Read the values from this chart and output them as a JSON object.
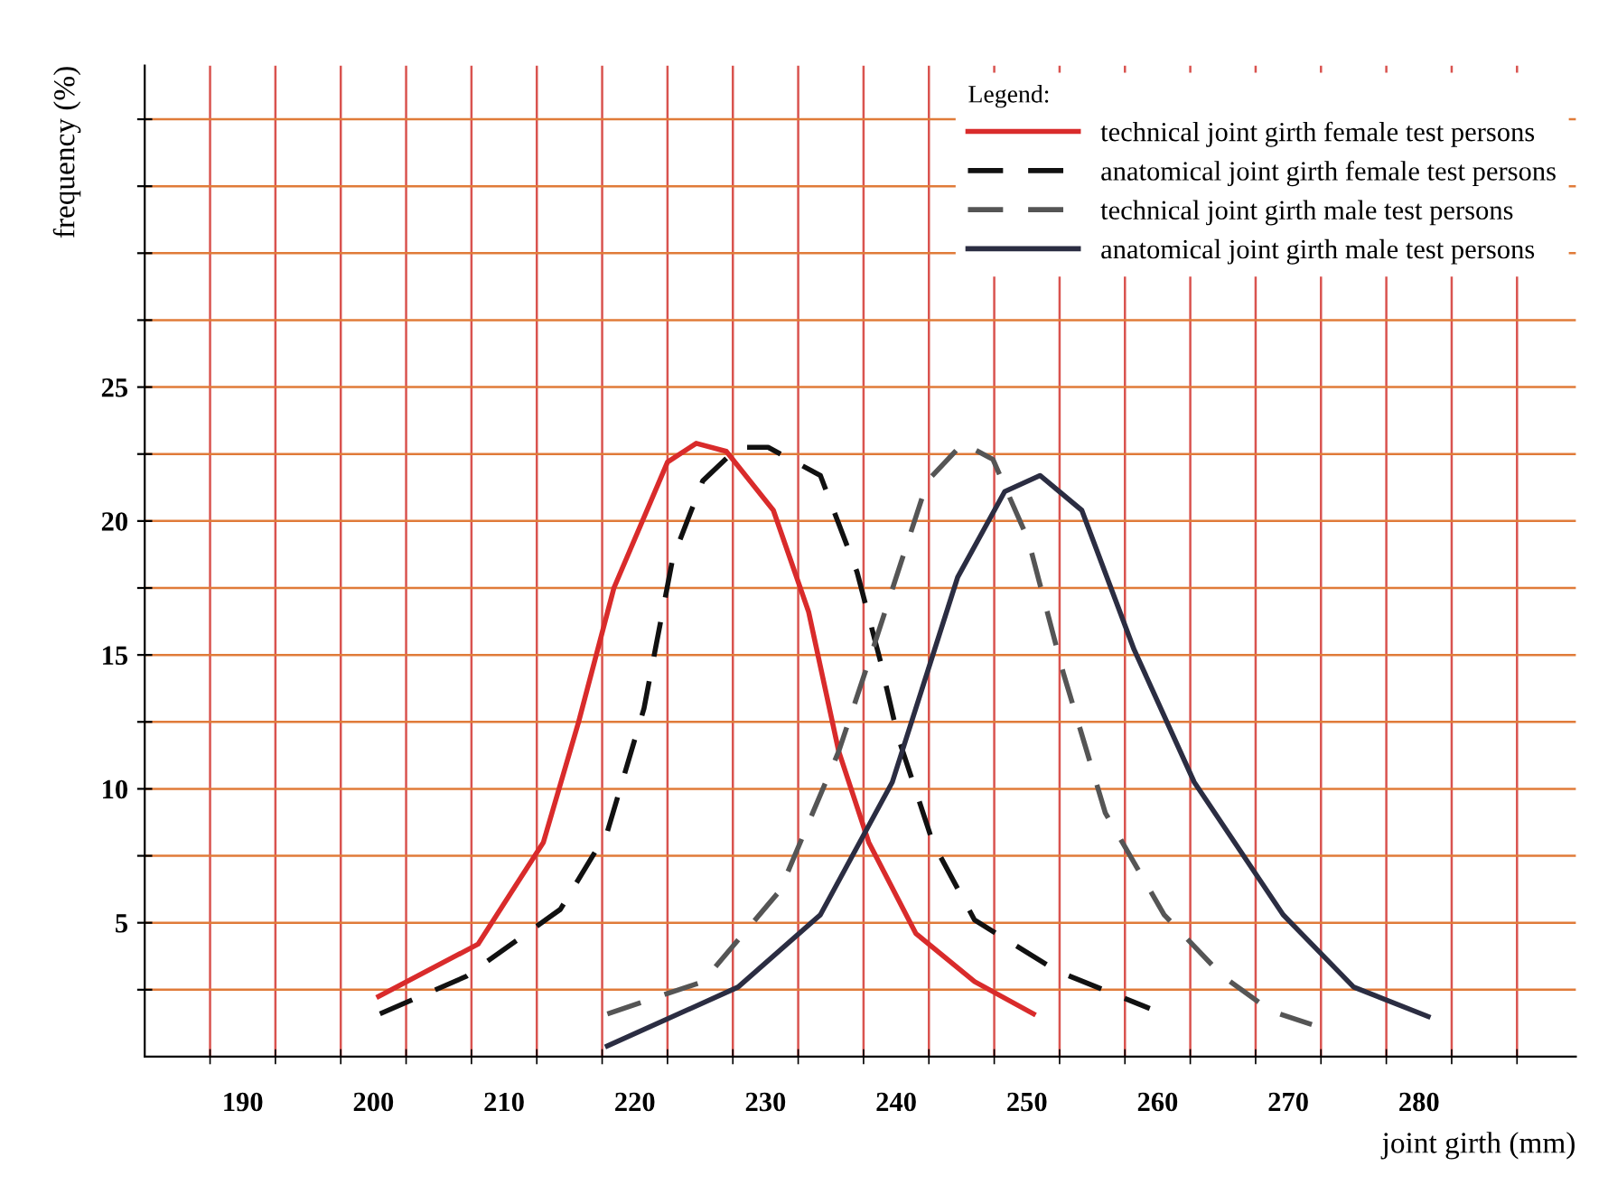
{
  "chart_data": {
    "type": "line",
    "xlabel": "joint girth (mm)",
    "ylabel": "frequency (%)",
    "legend_title": "Legend:",
    "xlim": [
      182.5,
      292
    ],
    "ylim": [
      0,
      37
    ],
    "xticks": [
      {
        "value": 187.5,
        "label": null
      },
      190,
      {
        "value": 192.5,
        "label": null
      },
      {
        "value": 197.5,
        "label": null
      },
      200,
      {
        "value": 202.5,
        "label": null
      },
      {
        "value": 207.5,
        "label": null
      },
      210,
      {
        "value": 212.5,
        "label": null
      },
      {
        "value": 217.5,
        "label": null
      },
      220,
      {
        "value": 222.5,
        "label": null
      },
      {
        "value": 227.5,
        "label": null
      },
      230,
      {
        "value": 232.5,
        "label": null
      },
      {
        "value": 237.5,
        "label": null
      },
      240,
      {
        "value": 242.5,
        "label": null
      },
      {
        "value": 247.5,
        "label": null
      },
      250,
      {
        "value": 252.5,
        "label": null
      },
      {
        "value": 257.5,
        "label": null
      },
      260,
      {
        "value": 262.5,
        "label": null
      },
      {
        "value": 267.5,
        "label": null
      },
      270,
      {
        "value": 272.5,
        "label": null
      },
      {
        "value": 277.5,
        "label": null
      },
      280,
      {
        "value": 282.5,
        "label": null
      },
      {
        "value": 287.5,
        "label": null
      }
    ],
    "yticks": [
      {
        "value": 2.5,
        "label": null
      },
      5,
      {
        "value": 7.5,
        "label": null
      },
      10,
      {
        "value": 12.5,
        "label": null
      },
      15,
      {
        "value": 17.5,
        "label": null
      },
      20,
      {
        "value": 22.5,
        "label": null
      },
      25,
      {
        "value": 27.5,
        "label": null
      },
      {
        "value": 30,
        "label": null
      },
      {
        "value": 32.5,
        "label": null
      },
      {
        "value": 35,
        "label": null
      }
    ],
    "grid": true,
    "legend": "top right",
    "marker": "none",
    "series": [
      {
        "name": "technical joint girth female test persons",
        "color": "#d92b2b",
        "line_style": "solid",
        "x": [
          200.4,
          208,
          213,
          215.7,
          218.4,
          222.5,
          224.7,
          227,
          230.6,
          233.3,
          235.6,
          237.9,
          241.5,
          246,
          250.5
        ],
        "values": [
          2.25,
          4.2,
          8.0,
          12.5,
          17.5,
          22.2,
          22.9,
          22.6,
          20.4,
          16.6,
          11.4,
          8.0,
          4.6,
          2.8,
          1.6
        ]
      },
      {
        "name": "anatomical joint girth female test persons",
        "color": "#111111",
        "line_style": "dashed",
        "x": [
          200.5,
          207.1,
          214.3,
          217.9,
          220.7,
          222.9,
          225.2,
          227.9,
          230.2,
          234.2,
          237,
          238.8,
          240.1,
          242.8,
          246,
          252.3,
          259.4
        ],
        "values": [
          1.6,
          3.0,
          5.5,
          8.4,
          13.0,
          18.6,
          21.5,
          22.75,
          22.75,
          21.7,
          18.1,
          14.75,
          12.0,
          8.0,
          5.1,
          3.2,
          1.8
        ]
      },
      {
        "name": "technical joint girth male test persons",
        "color": "#555555",
        "line_style": "dashed",
        "x": [
          217.9,
          225.2,
          231.1,
          235.6,
          238.2,
          240.6,
          242.4,
          245.1,
          247.4,
          250.1,
          252.8,
          256,
          260.5,
          265,
          268.7,
          271.8
        ],
        "values": [
          1.6,
          2.8,
          6.2,
          11.4,
          15.2,
          18.8,
          21.5,
          22.9,
          22.3,
          19.3,
          14.3,
          9.1,
          5.3,
          3.0,
          1.7,
          1.2
        ]
      },
      {
        "name": "anatomical joint girth male test persons",
        "color": "#2b2d42",
        "line_style": "solid",
        "x": [
          217.9,
          227.9,
          234.2,
          239.7,
          244.7,
          248.3,
          251,
          254.2,
          258.2,
          262.8,
          269.6,
          275,
          280.7
        ],
        "values": [
          0.4,
          2.6,
          5.3,
          10.25,
          17.9,
          21.1,
          21.7,
          20.4,
          15.2,
          10.25,
          5.3,
          2.6,
          1.5
        ]
      }
    ]
  }
}
